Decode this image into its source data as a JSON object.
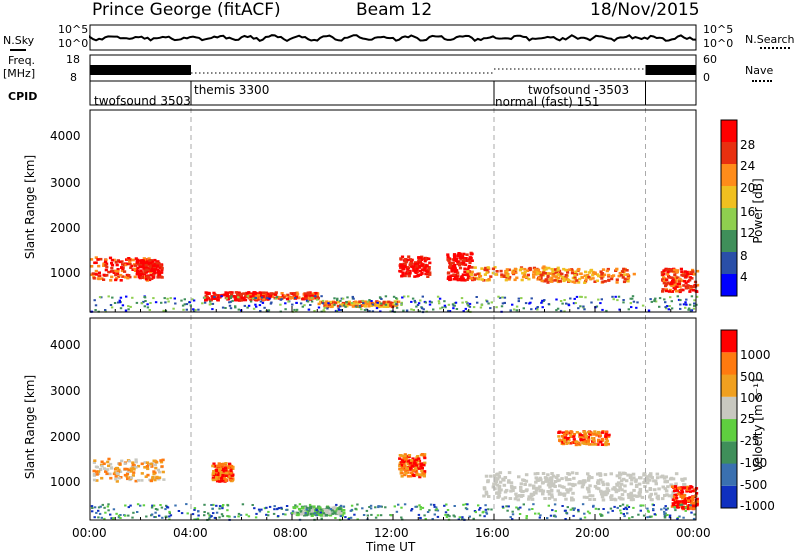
{
  "header": {
    "station": "Prince George (fitACF)",
    "beam": "Beam 12",
    "date": "18/Nov/2015"
  },
  "strip": {
    "nsky_label": "N.Sky",
    "nsky_top": "10^5",
    "nsky_bottom": "10^0",
    "nsearch_label": "N.Search",
    "nsearch_top": "10^5",
    "nsearch_bottom": "10^0",
    "freq_label": "Freq.",
    "freq_unit": "[MHz]",
    "freq_top": "18",
    "freq_bottom": "8",
    "nave_label": "Nave",
    "nave_top": "60",
    "nave_bottom": "0",
    "cpid_label": "CPID"
  },
  "cpid_segments": [
    {
      "label": "twofsound 3503",
      "start_hour": 0,
      "end_hour": 4
    },
    {
      "label": "themis 3300",
      "start_hour": 4,
      "end_hour": 16
    },
    {
      "label": "normal (fast) 151",
      "start_hour": 16,
      "end_hour": 22
    },
    {
      "label": "twofsound -3503",
      "start_hour": 16,
      "end_hour": 22
    }
  ],
  "power_panel": {
    "ylabel": "Slant Range [km]",
    "yticks": [
      "4000",
      "3000",
      "2000",
      "1000"
    ],
    "colorbar_label": "Power [dB]",
    "colorbar_ticks": [
      "28",
      "24",
      "20",
      "16",
      "12",
      "8",
      "4"
    ],
    "colors": [
      "#0000ff",
      "#2a4fa8",
      "#3f8f5a",
      "#8fcf4f",
      "#f0c020",
      "#ff8c1a",
      "#e83010",
      "#ff0000"
    ]
  },
  "velocity_panel": {
    "ylabel": "Slant Range [km]",
    "yticks": [
      "4000",
      "3000",
      "2000",
      "1000"
    ],
    "colorbar_label": "Velocity [m s⁻¹]",
    "colorbar_ticks": [
      "1000",
      "500",
      "100",
      "25",
      "-25",
      "-100",
      "-500",
      "-1000"
    ],
    "colors": [
      "#1030c0",
      "#3a70b0",
      "#3f8f5a",
      "#5fcf3f",
      "#c8c8c0",
      "#f0a020",
      "#ff7a10",
      "#ff0000"
    ]
  },
  "xaxis": {
    "ticks": [
      "00:00",
      "04:00",
      "08:00",
      "12:00",
      "16:00",
      "20:00",
      "00:00"
    ],
    "label": "Time UT"
  },
  "chart_data": {
    "type": "heatmap",
    "title": "Prince George (fitACF)",
    "xlabel": "Time UT",
    "ylabel": "Slant Range [km]",
    "x_range_hours": [
      0,
      24
    ],
    "y_range_km": [
      180,
      4600
    ],
    "mode_change_hours": [
      4,
      16,
      22
    ],
    "power_blobs": [
      {
        "t": 1.2,
        "r": 1150,
        "dt": 1.2,
        "dr": 250,
        "level": 6
      },
      {
        "t": 2.3,
        "r": 1150,
        "dt": 0.5,
        "dr": 200,
        "level": 7
      },
      {
        "t": 5.7,
        "r": 550,
        "dt": 1.2,
        "dr": 90,
        "level": 7
      },
      {
        "t": 7.6,
        "r": 560,
        "dt": 1.4,
        "dr": 80,
        "level": 6
      },
      {
        "t": 10.6,
        "r": 380,
        "dt": 1.6,
        "dr": 60,
        "level": 5
      },
      {
        "t": 12.8,
        "r": 1200,
        "dt": 0.6,
        "dr": 220,
        "level": 7
      },
      {
        "t": 14.6,
        "r": 1200,
        "dt": 0.5,
        "dr": 300,
        "level": 7
      },
      {
        "t": 16.9,
        "r": 1050,
        "dt": 2.0,
        "dr": 150,
        "level": 5
      },
      {
        "t": 19.5,
        "r": 1000,
        "dt": 2.0,
        "dr": 150,
        "level": 5
      },
      {
        "t": 23.3,
        "r": 900,
        "dt": 0.7,
        "dr": 250,
        "level": 6
      }
    ],
    "velocity_blobs": [
      {
        "t": 1.5,
        "r": 1300,
        "dt": 1.4,
        "dr": 250,
        "level": 5
      },
      {
        "t": 5.2,
        "r": 1250,
        "dt": 0.4,
        "dr": 200,
        "level": 6
      },
      {
        "t": 12.7,
        "r": 1400,
        "dt": 0.5,
        "dr": 250,
        "level": 6
      },
      {
        "t": 19.5,
        "r": 2000,
        "dt": 1.0,
        "dr": 150,
        "level": 6
      },
      {
        "t": 23.5,
        "r": 700,
        "dt": 0.5,
        "dr": 250,
        "level": 7
      },
      {
        "t": 9.0,
        "r": 400,
        "dt": 1.0,
        "dr": 100,
        "level": 3
      }
    ],
    "ground_scatter_band": {
      "t_start": 15.5,
      "t_end": 23.5,
      "r": 950,
      "dr": 300
    }
  }
}
